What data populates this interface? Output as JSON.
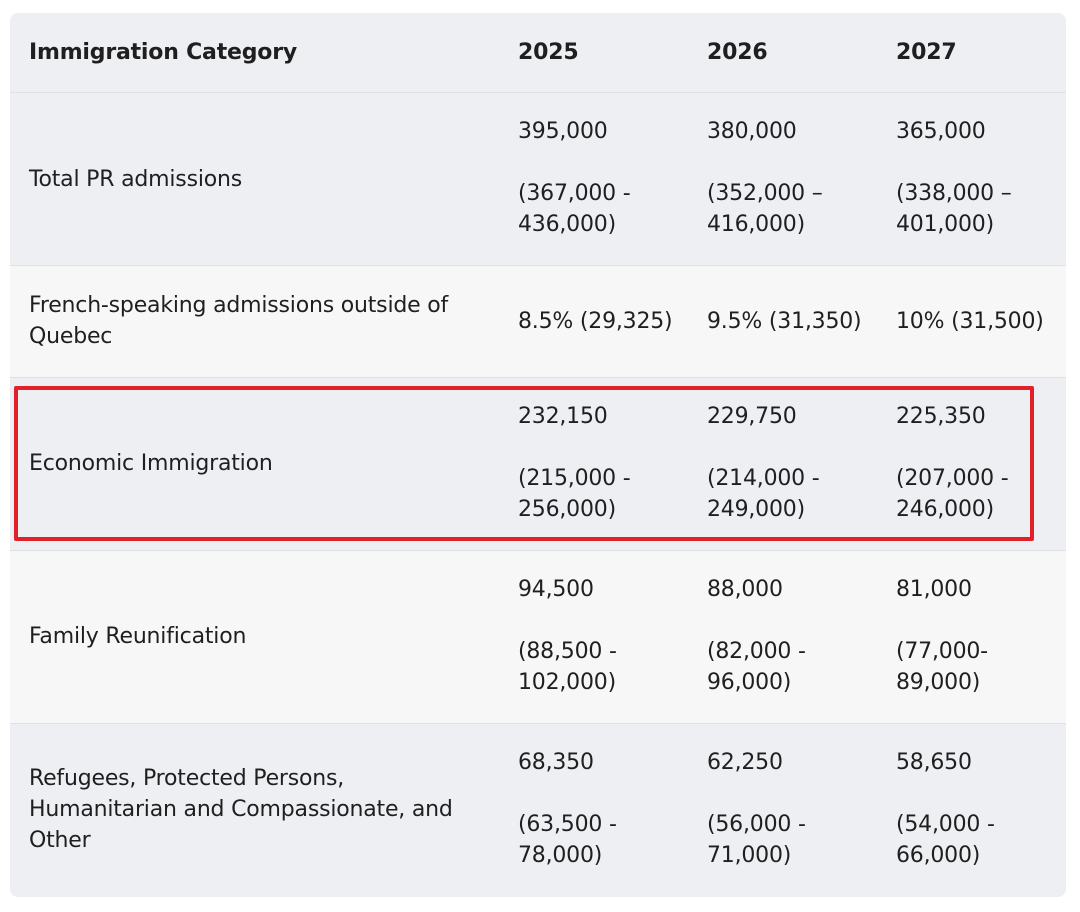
{
  "table": {
    "headers": [
      "Immigration Category",
      "2025",
      "2026",
      "2027"
    ],
    "rows": [
      {
        "category": "Total PR admissions",
        "values": [
          {
            "main": "395,000",
            "range": "(367,000 - 436,000)"
          },
          {
            "main": "380,000",
            "range": "(352,000 – 416,000)"
          },
          {
            "main": "365,000",
            "range": "(338,000 – 401,000)"
          }
        ]
      },
      {
        "category": "French-speaking admissions outside of Quebec",
        "values": [
          {
            "main": "8.5% (29,325)"
          },
          {
            "main": "9.5% (31,350)"
          },
          {
            "main": "10% (31,500)"
          }
        ]
      },
      {
        "category": "Economic Immigration",
        "highlighted": true,
        "values": [
          {
            "main": "232,150",
            "range": "(215,000 - 256,000)"
          },
          {
            "main": "229,750",
            "range": "(214,000 - 249,000)"
          },
          {
            "main": "225,350",
            "range": "(207,000 - 246,000)"
          }
        ]
      },
      {
        "category": "Family Reunification",
        "values": [
          {
            "main": "94,500",
            "range": "(88,500 - 102,000)"
          },
          {
            "main": "88,000",
            "range": "(82,000 - 96,000)"
          },
          {
            "main": "81,000",
            "range": "(77,000- 89,000)"
          }
        ]
      },
      {
        "category": "Refugees, Protected Persons, Humanitarian and Compassionate, and Other",
        "values": [
          {
            "main": "68,350",
            "range": "(63,500 - 78,000)"
          },
          {
            "main": "62,250",
            "range": "(56,000 - 71,000)"
          },
          {
            "main": "58,650",
            "range": "(54,000 - 66,000)"
          }
        ]
      }
    ]
  },
  "colors": {
    "highlight_border": "#e2202a",
    "row_dark": "#eeeff3",
    "row_light": "#f7f7f8"
  }
}
